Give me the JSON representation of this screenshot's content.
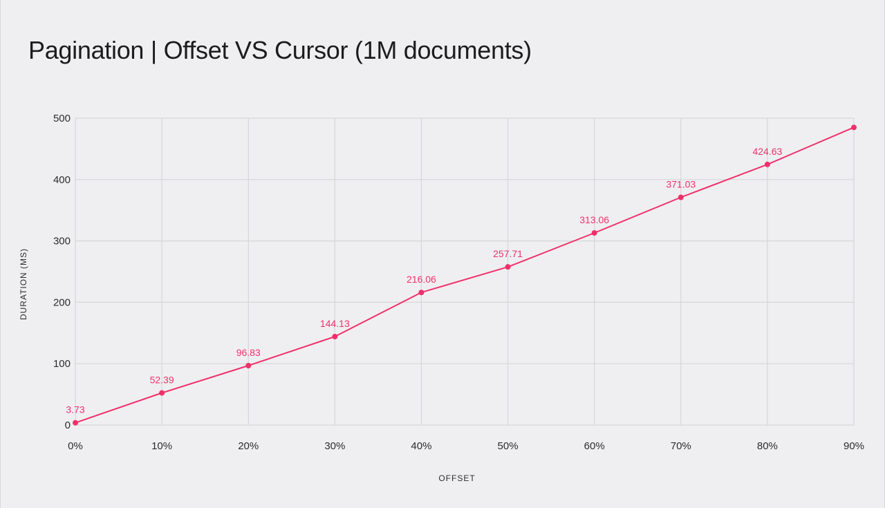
{
  "chart_data": {
    "type": "line",
    "title": "Pagination | Offset VS Cursor (1M documents)",
    "xlabel": "OFFSET",
    "ylabel": "DURATION (MS)",
    "categories": [
      "0%",
      "10%",
      "20%",
      "30%",
      "40%",
      "50%",
      "60%",
      "70%",
      "80%",
      "90%"
    ],
    "y_ticks": [
      "0",
      "100",
      "200",
      "300",
      "400",
      "500"
    ],
    "ylim": [
      0,
      500
    ],
    "grid": true,
    "legend": "none",
    "series": [
      {
        "values": [
          3.73,
          52.39,
          96.83,
          144.13,
          216.06,
          257.71,
          313.06,
          371.03,
          424.63,
          485
        ],
        "labels": [
          "3.73",
          "52.39",
          "96.83",
          "144.13",
          "216.06",
          "257.71",
          "313.06",
          "371.03",
          "424.63",
          ""
        ],
        "color": "#f0306a"
      }
    ],
    "colors": {
      "line": "#f0306a",
      "grid": "#d6d6da",
      "background": "#efeff1"
    }
  }
}
